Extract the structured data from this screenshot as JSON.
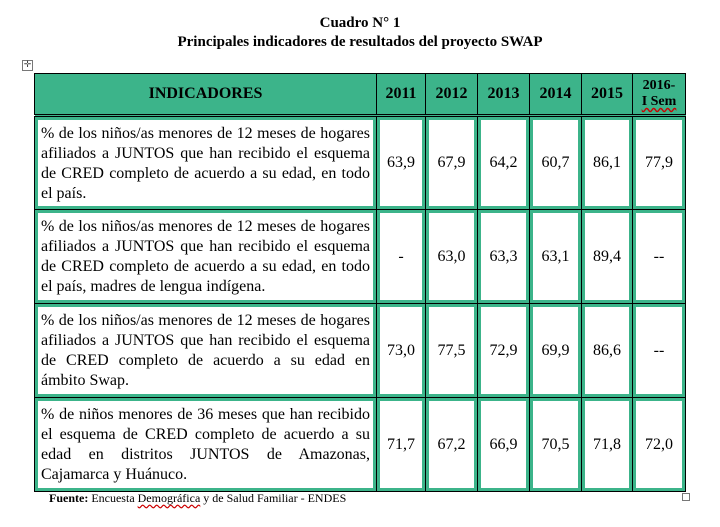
{
  "title": {
    "line1": "Cuadro N° 1",
    "line2": "Principales indicadores de resultados del proyecto SWAP"
  },
  "table": {
    "headers": {
      "indicator": "INDICADORES",
      "years": [
        "2011",
        "2012",
        "2013",
        "2014",
        "2015"
      ],
      "last_line1": "2016-",
      "last_line2": "I Sem"
    },
    "rows": [
      {
        "indicator": " % de los niños/as menores de 12 meses de hogares afiliados a JUNTOS que han recibido el esquema de CRED completo de acuerdo a su edad, en todo el país.",
        "values": [
          "63,9",
          "67,9",
          "64,2",
          "60,7",
          "86,1",
          "77,9"
        ]
      },
      {
        "indicator": "% de los niños/as menores de 12 meses de hogares afiliados a JUNTOS que han recibido el esquema de CRED completo de acuerdo a su edad, en todo el país, madres de lengua indígena.",
        "values": [
          "-",
          "63,0",
          "63,3",
          "63,1",
          "89,4",
          "--"
        ]
      },
      {
        "indicator": "% de los niños/as menores de 12 meses de hogares afiliados a JUNTOS que han recibido el esquema de CRED completo de acuerdo a su edad en ámbito Swap.",
        "values": [
          "73,0",
          "77,5",
          "72,9",
          "69,9",
          "86,6",
          "--"
        ]
      },
      {
        "indicator": "% de niños menores de 36 meses que han recibido el esquema de CRED completo de acuerdo a su edad en distritos JUNTOS de Amazonas, Cajamarca y Huánuco.",
        "values": [
          "71,7",
          "67,2",
          "66,9",
          "70,5",
          "71,8",
          "72,0"
        ]
      }
    ]
  },
  "source": {
    "label": "Fuente:",
    "text_pre": " Encuesta ",
    "text_underlined": "Demográfica",
    "text_post": " y de Salud Familiar - ENDES"
  },
  "icons": {
    "move_handle": "move-icon",
    "resize_handle": "resize-icon"
  },
  "colors": {
    "header_bg": "#3cb48a",
    "cell_border": "#3cb48a"
  }
}
